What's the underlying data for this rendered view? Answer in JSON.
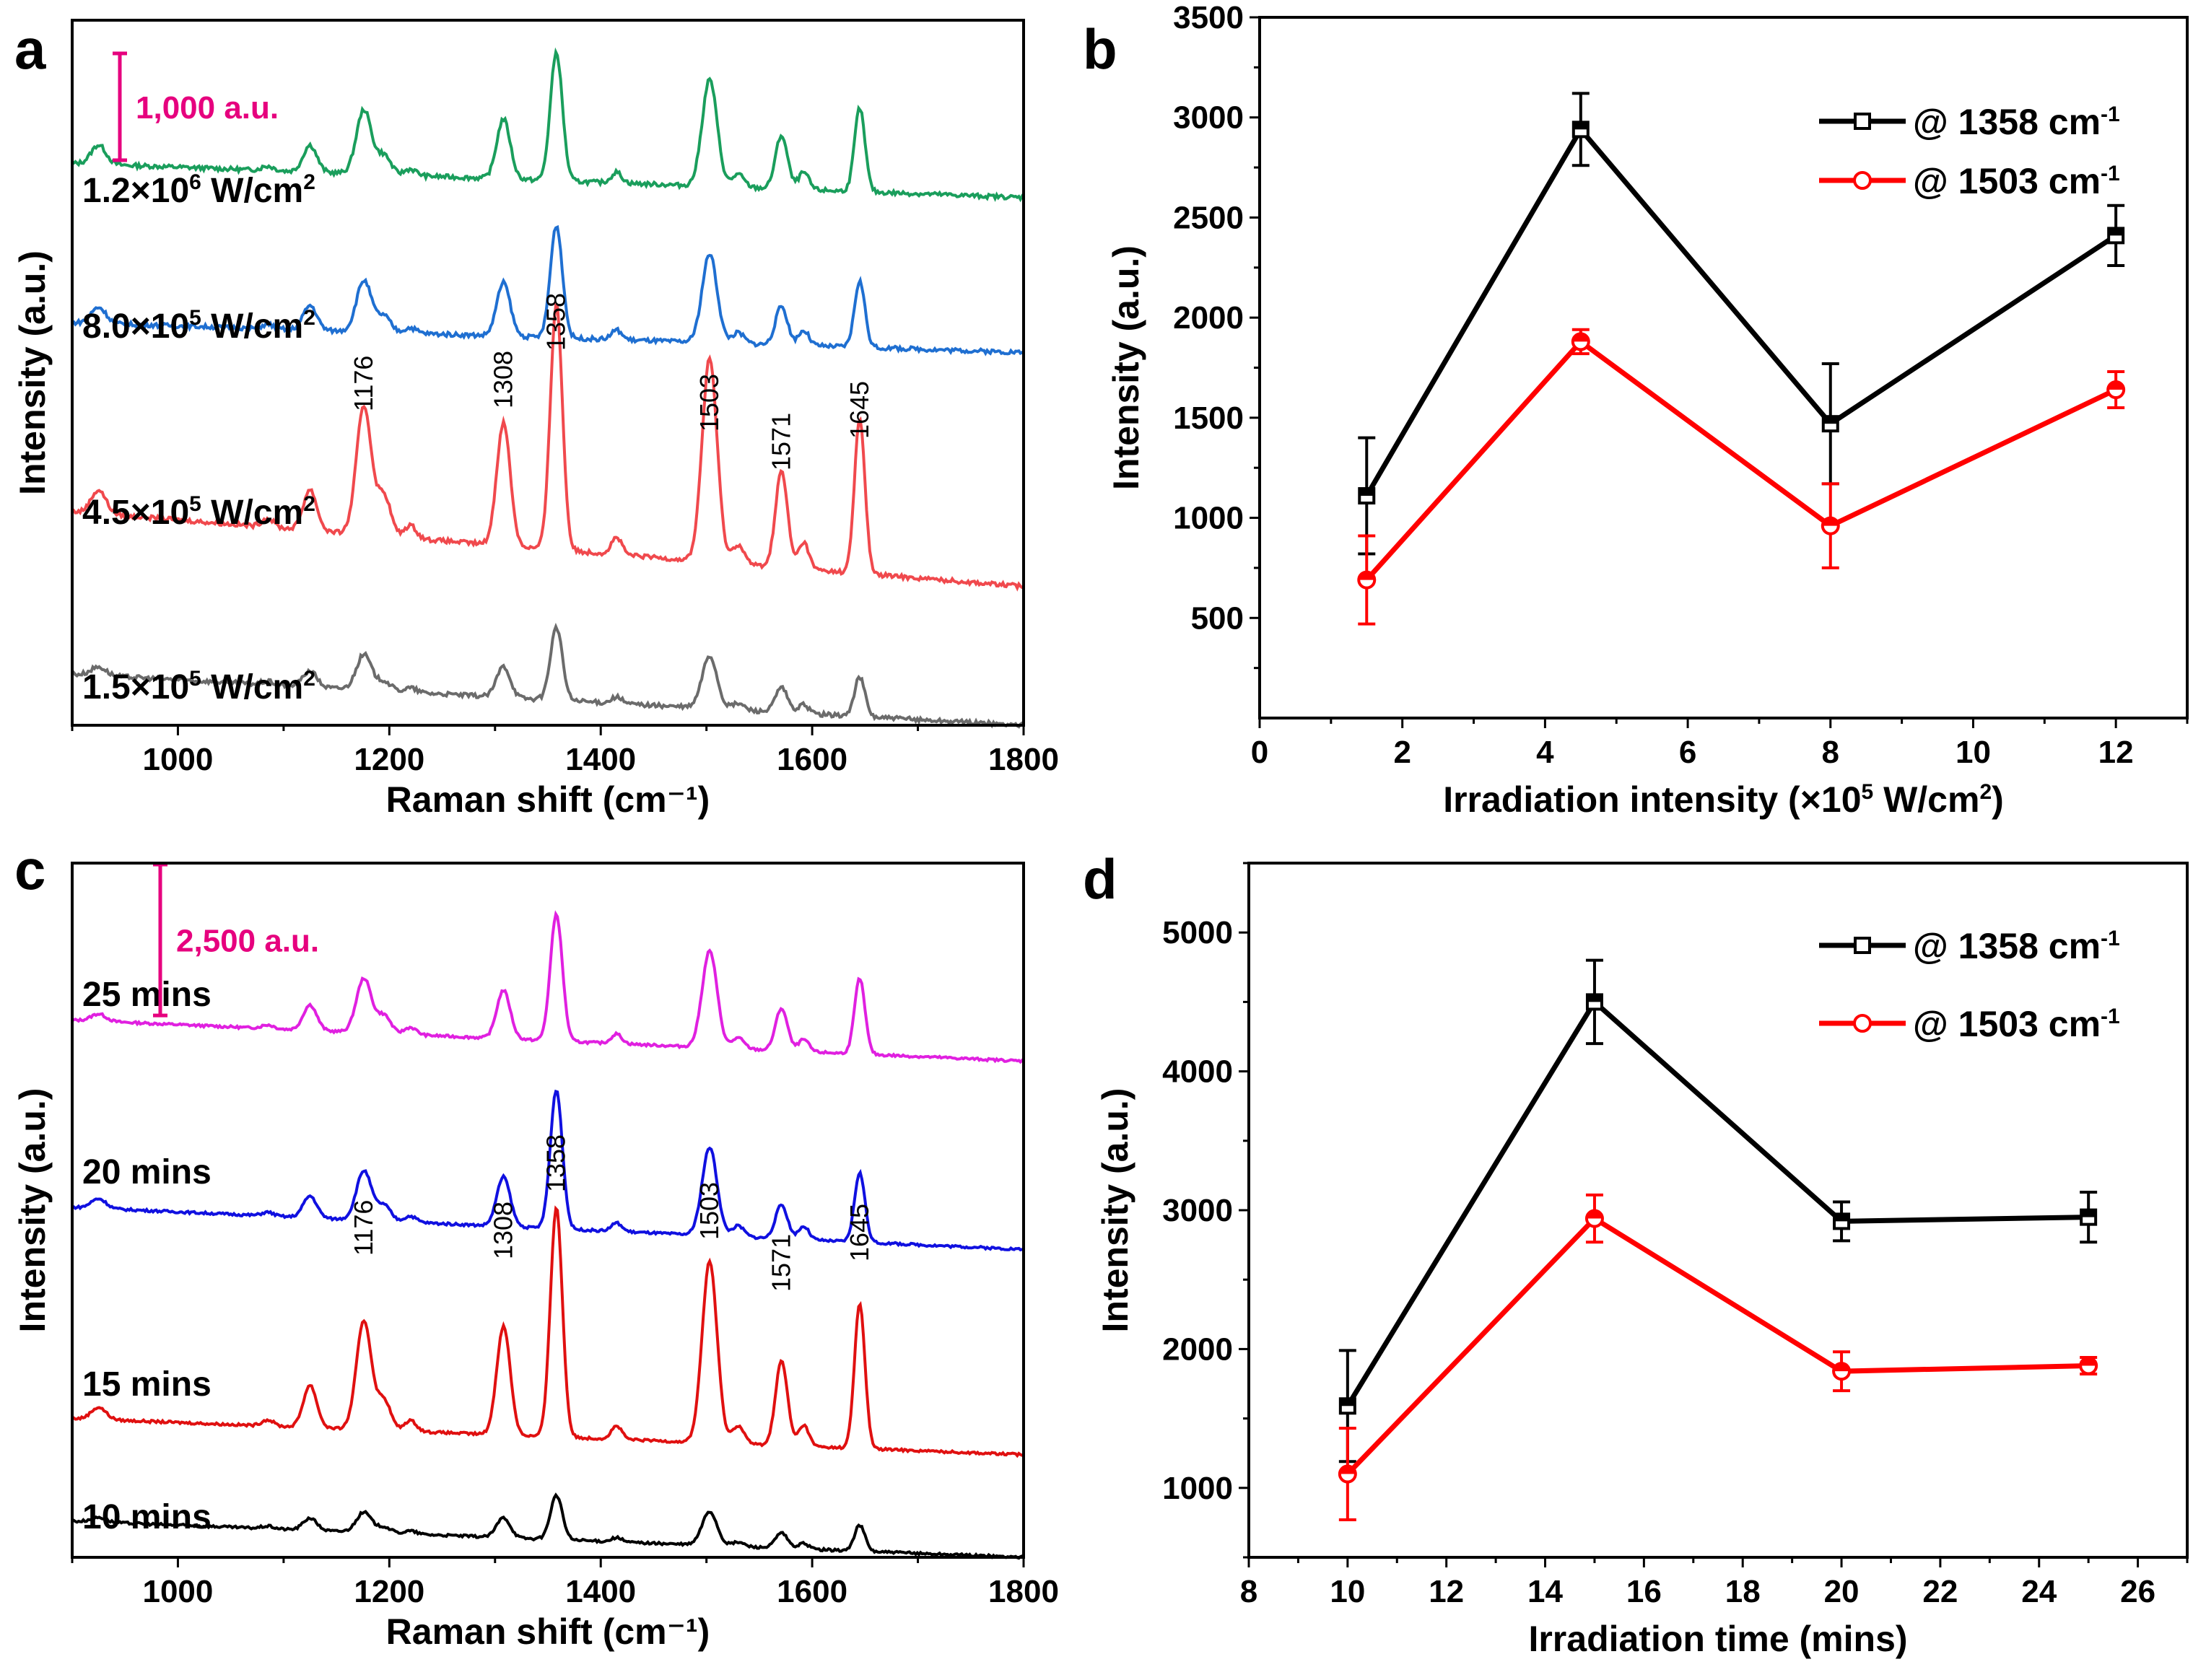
{
  "chart_data": [
    {
      "panel": "a",
      "type": "line",
      "xlabel": "Raman shift (cm⁻¹)",
      "ylabel": "Intensity (a.u.)",
      "xlim": [
        900,
        1800
      ],
      "xticks": [
        1000,
        1200,
        1400,
        1600,
        1800
      ],
      "scale_bar": {
        "label": "1,000 a.u.",
        "value": 1000,
        "color": "#e6007e"
      },
      "peak_labels": [
        "1176",
        "1308",
        "1358",
        "1503",
        "1571",
        "1645"
      ],
      "series": [
        {
          "name": "1.2×10^6 W/cm^2",
          "label_base": "1.2×10",
          "label_exp": "6",
          "label_unit": " W/cm",
          "label_unit_exp": "2",
          "color": "#1a9e5c",
          "offset": 5000,
          "baseline_start": 260,
          "baseline_end": -60,
          "peaks": [
            [
              925,
              180,
              10
            ],
            [
              1085,
              40,
              8
            ],
            [
              1125,
              250,
              9
            ],
            [
              1176,
              600,
              10
            ],
            [
              1195,
              180,
              9
            ],
            [
              1220,
              60,
              8
            ],
            [
              1308,
              560,
              9
            ],
            [
              1358,
              1200,
              8
            ],
            [
              1415,
              100,
              7
            ],
            [
              1503,
              1000,
              10
            ],
            [
              1530,
              120,
              8
            ],
            [
              1571,
              500,
              8
            ],
            [
              1592,
              160,
              7
            ],
            [
              1645,
              780,
              7
            ]
          ]
        },
        {
          "name": "8.0×10^5 W/cm^2",
          "label_base": "8.0×10",
          "label_exp": "5",
          "label_unit": " W/cm",
          "label_unit_exp": "2",
          "color": "#1f6fd1",
          "offset": 3550,
          "baseline_start": 220,
          "baseline_end": -60,
          "peaks": [
            [
              925,
              150,
              10
            ],
            [
              1085,
              40,
              8
            ],
            [
              1125,
              230,
              9
            ],
            [
              1176,
              480,
              10
            ],
            [
              1195,
              150,
              9
            ],
            [
              1220,
              50,
              8
            ],
            [
              1308,
              500,
              9
            ],
            [
              1358,
              1050,
              8
            ],
            [
              1415,
              90,
              7
            ],
            [
              1503,
              830,
              10
            ],
            [
              1530,
              100,
              8
            ],
            [
              1571,
              360,
              8
            ],
            [
              1592,
              140,
              7
            ],
            [
              1645,
              620,
              7
            ]
          ]
        },
        {
          "name": "4.5×10^5 W/cm^2",
          "label_base": "4.5×10",
          "label_exp": "5",
          "label_unit": " W/cm",
          "label_unit_exp": "2",
          "color": "#f0494d",
          "offset": 1300,
          "baseline_start": 700,
          "baseline_end": 0,
          "peaks": [
            [
              925,
              220,
              10
            ],
            [
              1085,
              80,
              8
            ],
            [
              1125,
              380,
              9
            ],
            [
              1176,
              1200,
              10
            ],
            [
              1195,
              380,
              9
            ],
            [
              1220,
              120,
              8
            ],
            [
              1308,
              1150,
              9
            ],
            [
              1358,
              2300,
              8
            ],
            [
              1415,
              160,
              7
            ],
            [
              1503,
              1900,
              10
            ],
            [
              1530,
              180,
              8
            ],
            [
              1571,
              900,
              8
            ],
            [
              1592,
              250,
              7
            ],
            [
              1645,
              1450,
              7
            ]
          ]
        },
        {
          "name": "1.5×10^5 W/cm^2",
          "label_base": "1.5×10",
          "label_exp": "5",
          "label_unit": " W/cm",
          "label_unit_exp": "2",
          "color": "#6b6b6b",
          "offset": 0,
          "baseline_start": 480,
          "baseline_end": 0,
          "peaks": [
            [
              925,
              80,
              10
            ],
            [
              1085,
              30,
              8
            ],
            [
              1125,
              150,
              9
            ],
            [
              1176,
              330,
              10
            ],
            [
              1195,
              90,
              9
            ],
            [
              1220,
              40,
              8
            ],
            [
              1308,
              290,
              9
            ],
            [
              1358,
              680,
              8
            ],
            [
              1415,
              60,
              7
            ],
            [
              1503,
              490,
              10
            ],
            [
              1530,
              60,
              8
            ],
            [
              1571,
              230,
              8
            ],
            [
              1592,
              80,
              7
            ],
            [
              1645,
              370,
              7
            ]
          ]
        }
      ]
    },
    {
      "panel": "b",
      "type": "line",
      "xlabel_base": "Irradiation intensity (×10",
      "xlabel_exp": "5",
      "xlabel_unit": " W/cm",
      "xlabel_unit_exp": "2",
      "xlabel_end": ")",
      "ylabel": "Intensity (a.u.)",
      "xlim": [
        0,
        13
      ],
      "ylim": [
        0,
        3500
      ],
      "xticks": [
        0,
        2,
        4,
        6,
        8,
        10,
        12
      ],
      "yticks": [
        500,
        1000,
        1500,
        2000,
        2500,
        3000,
        3500
      ],
      "legend_position": "top-right",
      "series": [
        {
          "name": "@ 1358 cm-1",
          "label_base": "@ 1358 cm",
          "label_exp": "-1",
          "color": "#000000",
          "marker": "square",
          "x": [
            1.5,
            4.5,
            8,
            12
          ],
          "y": [
            1110,
            2940,
            1470,
            2410
          ],
          "err": [
            290,
            180,
            300,
            150
          ]
        },
        {
          "name": "@ 1503 cm-1",
          "label_base": "@ 1503 cm",
          "label_exp": "-1",
          "color": "#ff0000",
          "marker": "circle",
          "x": [
            1.5,
            4.5,
            8,
            12
          ],
          "y": [
            690,
            1880,
            960,
            1640
          ],
          "err": [
            220,
            60,
            210,
            90
          ]
        }
      ]
    },
    {
      "panel": "c",
      "type": "line",
      "xlabel": "Raman shift (cm⁻¹)",
      "ylabel": "Intensity (a.u.)",
      "xlim": [
        900,
        1800
      ],
      "xticks": [
        1000,
        1200,
        1400,
        1600,
        1800
      ],
      "scale_bar": {
        "label": "2,500 a.u.",
        "value": 2500,
        "color": "#e6007e"
      },
      "peak_labels": [
        "1176",
        "1308",
        "1358",
        "1503",
        "1571",
        "1645"
      ],
      "series": [
        {
          "name": "25 mins",
          "color": "#e020e0",
          "offset": 8300,
          "baseline_start": 600,
          "baseline_end": -80,
          "peaks": [
            [
              925,
              120,
              10
            ],
            [
              1085,
              60,
              8
            ],
            [
              1125,
              420,
              9
            ],
            [
              1176,
              900,
              10
            ],
            [
              1195,
              300,
              9
            ],
            [
              1220,
              120,
              8
            ],
            [
              1308,
              800,
              9
            ],
            [
              1358,
              2100,
              8
            ],
            [
              1415,
              160,
              7
            ],
            [
              1503,
              1600,
              10
            ],
            [
              1530,
              180,
              8
            ],
            [
              1571,
              700,
              8
            ],
            [
              1592,
              200,
              7
            ],
            [
              1645,
              1250,
              7
            ]
          ]
        },
        {
          "name": "20 mins",
          "color": "#1010e0",
          "offset": 5200,
          "baseline_start": 600,
          "baseline_end": -100,
          "peaks": [
            [
              925,
              160,
              10
            ],
            [
              1085,
              60,
              8
            ],
            [
              1125,
              360,
              9
            ],
            [
              1176,
              820,
              10
            ],
            [
              1195,
              260,
              9
            ],
            [
              1220,
              100,
              8
            ],
            [
              1308,
              820,
              9
            ],
            [
              1358,
              2300,
              8
            ],
            [
              1415,
              140,
              7
            ],
            [
              1503,
              1460,
              10
            ],
            [
              1530,
              180,
              8
            ],
            [
              1571,
              560,
              8
            ],
            [
              1592,
              220,
              7
            ],
            [
              1645,
              1150,
              7
            ]
          ]
        },
        {
          "name": "15 mins",
          "color": "#e01010",
          "offset": 1700,
          "baseline_start": 600,
          "baseline_end": 0,
          "peaks": [
            [
              925,
              200,
              10
            ],
            [
              1085,
              100,
              8
            ],
            [
              1125,
              700,
              9
            ],
            [
              1176,
              1800,
              10
            ],
            [
              1195,
              500,
              9
            ],
            [
              1220,
              180,
              8
            ],
            [
              1308,
              1800,
              9
            ],
            [
              1358,
              3800,
              8
            ],
            [
              1415,
              220,
              7
            ],
            [
              1503,
              3000,
              10
            ],
            [
              1530,
              300,
              8
            ],
            [
              1571,
              1400,
              8
            ],
            [
              1592,
              350,
              7
            ],
            [
              1645,
              2400,
              7
            ]
          ]
        },
        {
          "name": "10 mins",
          "color": "#000000",
          "offset": 0,
          "baseline_start": 600,
          "baseline_end": 0,
          "peaks": [
            [
              925,
              80,
              10
            ],
            [
              1085,
              40,
              8
            ],
            [
              1125,
              200,
              9
            ],
            [
              1176,
              330,
              10
            ],
            [
              1195,
              100,
              9
            ],
            [
              1220,
              50,
              8
            ],
            [
              1308,
              330,
              9
            ],
            [
              1358,
              730,
              8
            ],
            [
              1415,
              70,
              7
            ],
            [
              1503,
              560,
              10
            ],
            [
              1530,
              70,
              8
            ],
            [
              1571,
              250,
              8
            ],
            [
              1592,
              90,
              7
            ],
            [
              1645,
              430,
              7
            ]
          ]
        }
      ]
    },
    {
      "panel": "d",
      "type": "line",
      "xlabel": "Irradiation time (mins)",
      "ylabel": "Intensity (a.u.)",
      "xlim": [
        8,
        27
      ],
      "ylim": [
        500,
        5500
      ],
      "xticks": [
        8,
        10,
        12,
        14,
        16,
        18,
        20,
        22,
        24,
        26
      ],
      "yticks": [
        1000,
        2000,
        3000,
        4000,
        5000
      ],
      "legend_position": "top-right",
      "series": [
        {
          "name": "@ 1358 cm-1",
          "label_base": "@ 1358 cm",
          "label_exp": "-1",
          "color": "#000000",
          "marker": "square",
          "x": [
            10,
            15,
            20,
            25
          ],
          "y": [
            1590,
            4500,
            2920,
            2950
          ],
          "err": [
            400,
            300,
            140,
            180
          ]
        },
        {
          "name": "@ 1503 cm-1",
          "label_base": "@ 1503 cm",
          "label_exp": "-1",
          "color": "#ff0000",
          "marker": "circle",
          "x": [
            10,
            15,
            20,
            25
          ],
          "y": [
            1100,
            2940,
            1840,
            1880
          ],
          "err": [
            330,
            170,
            140,
            60
          ]
        }
      ]
    }
  ]
}
